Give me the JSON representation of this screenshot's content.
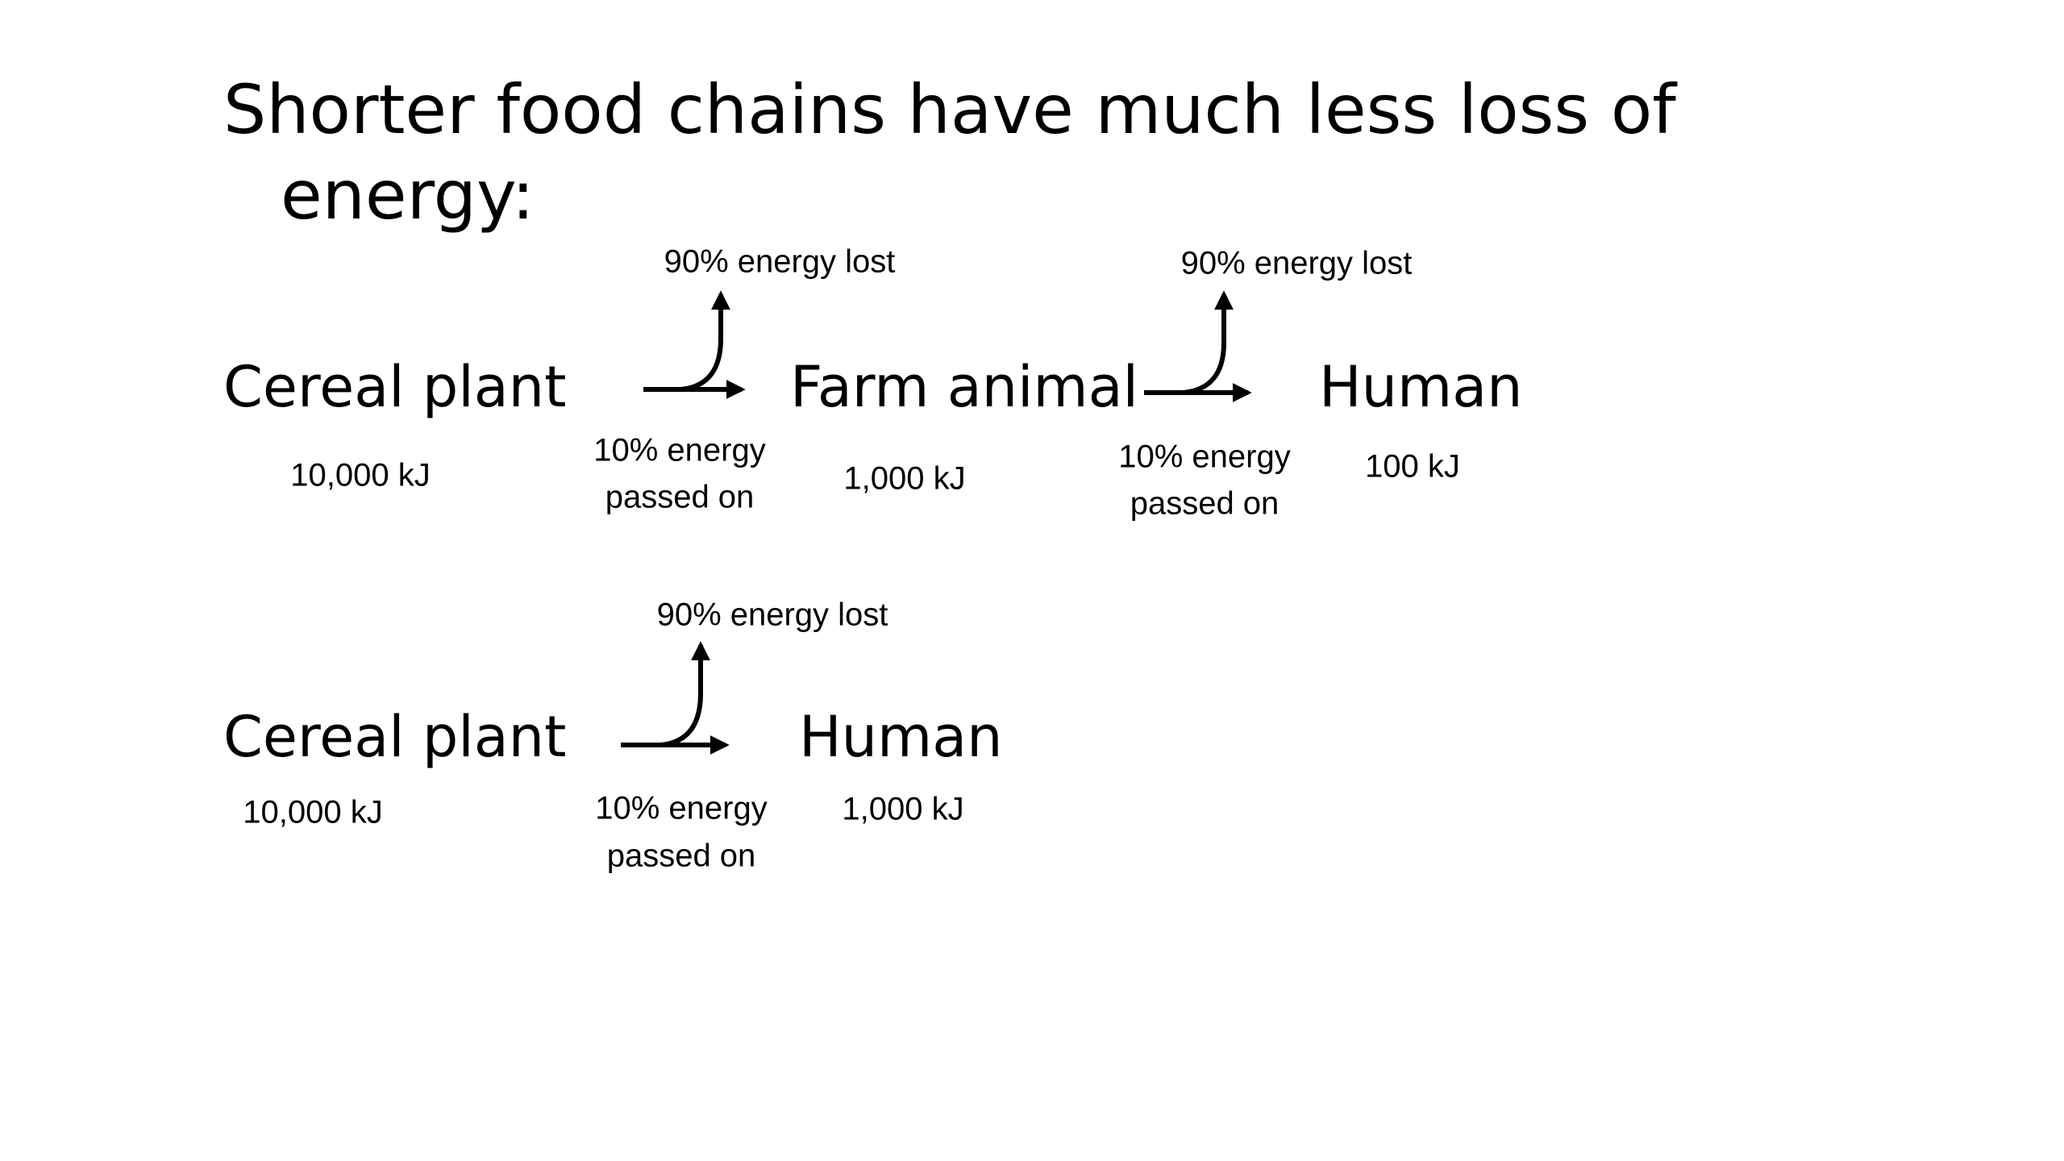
{
  "title": [
    "Shorter food chains have much less loss of",
    "energy:"
  ],
  "chains": [
    {
      "nodes": [
        {
          "label": "Cereal plant",
          "energy": "10,000 kJ"
        },
        {
          "label": "Farm animal",
          "energy": "1,000 kJ"
        },
        {
          "label": "Human",
          "energy": "100 kJ"
        }
      ],
      "arrows": [
        {
          "lost": "90% energy lost",
          "passed": [
            "10% energy",
            "passed on"
          ]
        },
        {
          "lost": "90% energy lost",
          "passed": [
            "10% energy",
            "passed on"
          ]
        }
      ]
    },
    {
      "nodes": [
        {
          "label": "Cereal plant",
          "energy": "10,000 kJ"
        },
        {
          "label": "Human",
          "energy": "1,000 kJ"
        }
      ],
      "arrows": [
        {
          "lost": "90% energy lost",
          "passed": [
            "10% energy",
            "passed on"
          ]
        }
      ]
    }
  ]
}
